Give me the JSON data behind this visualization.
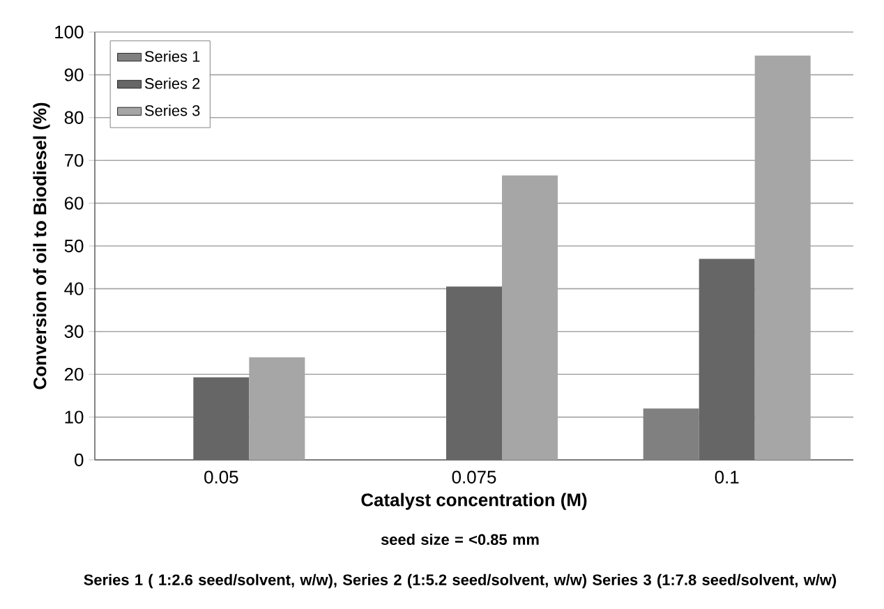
{
  "chart_data": {
    "type": "bar",
    "xlabel": "Catalyst concentration (M)",
    "ylabel": "Conversion of oil to Biodiesel (%)",
    "categories": [
      "0.05",
      "0.075",
      "0.1"
    ],
    "series": [
      {
        "name": "Series 1",
        "color": "#808080",
        "values": [
          null,
          null,
          12
        ]
      },
      {
        "name": "Series 2",
        "color": "#666666",
        "values": [
          19.3,
          40.5,
          47
        ]
      },
      {
        "name": "Series 3",
        "color": "#a6a6a6",
        "values": [
          24,
          66.5,
          94.5
        ]
      }
    ],
    "ylim": [
      0,
      100
    ],
    "yticks": [
      0,
      10,
      20,
      30,
      40,
      50,
      60,
      70,
      80,
      90,
      100
    ],
    "grid": "y",
    "legend": "top left",
    "annotations": [
      "seed size = <0.85 mm",
      "Series 1 ( 1:2.6 seed/solvent, w/w), Series 2 (1:5.2 seed/solvent, w/w) Series 3 (1:7.8 seed/solvent, w/w)"
    ]
  }
}
